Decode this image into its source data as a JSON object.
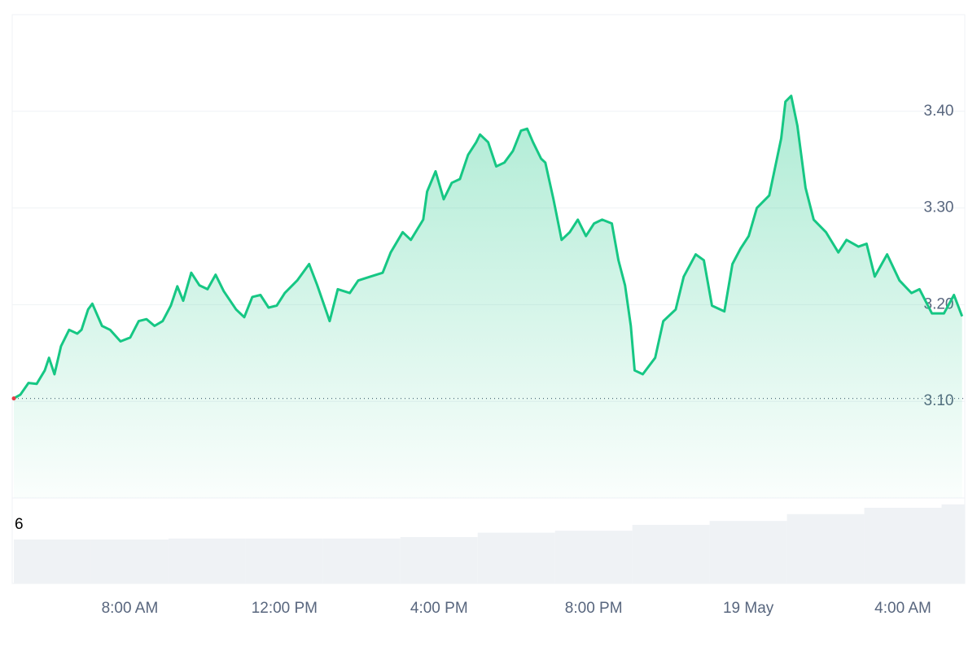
{
  "chart_data": {
    "type": "line",
    "x": [
      5.0,
      5.17,
      5.38,
      5.59,
      5.8,
      5.91,
      6.05,
      6.22,
      6.43,
      6.64,
      6.75,
      6.92,
      7.03,
      7.28,
      7.49,
      7.76,
      8.01,
      8.23,
      8.43,
      8.64,
      8.85,
      9.06,
      9.23,
      9.38,
      9.59,
      9.8,
      10.01,
      10.22,
      10.43,
      10.75,
      10.96,
      11.17,
      11.38,
      11.59,
      11.8,
      12.01,
      12.33,
      12.64,
      12.85,
      13.17,
      13.38,
      13.69,
      13.91,
      14.22,
      14.54,
      14.75,
      15.06,
      15.27,
      15.59,
      15.69,
      15.91,
      16.12,
      16.33,
      16.54,
      16.75,
      16.96,
      17.06,
      17.27,
      17.48,
      17.69,
      17.91,
      18.12,
      18.28,
      18.43,
      18.64,
      18.75,
      18.96,
      19.17,
      19.38,
      19.59,
      19.8,
      20.01,
      20.22,
      20.47,
      20.64,
      20.81,
      20.96,
      21.06,
      21.27,
      21.59,
      21.8,
      22.12,
      22.33,
      22.64,
      22.85,
      23.06,
      23.38,
      23.59,
      23.8,
      24.01,
      24.22,
      24.54,
      24.85,
      24.96,
      25.11,
      25.27,
      25.48,
      25.69,
      26.01,
      26.33,
      26.54,
      26.85,
      27.06,
      27.27,
      27.59,
      27.91,
      28.22,
      28.43,
      28.75,
      29.06,
      29.32,
      29.53
    ],
    "series": [
      {
        "color": "#16c784",
        "values": [
          3.103,
          3.107,
          3.119,
          3.118,
          3.132,
          3.145,
          3.128,
          3.157,
          3.174,
          3.17,
          3.174,
          3.195,
          3.201,
          3.178,
          3.174,
          3.162,
          3.166,
          3.183,
          3.185,
          3.178,
          3.183,
          3.199,
          3.219,
          3.204,
          3.233,
          3.22,
          3.216,
          3.231,
          3.214,
          3.195,
          3.187,
          3.208,
          3.21,
          3.197,
          3.199,
          3.212,
          3.225,
          3.242,
          3.22,
          3.183,
          3.216,
          3.212,
          3.225,
          3.229,
          3.233,
          3.254,
          3.275,
          3.267,
          3.288,
          3.317,
          3.338,
          3.309,
          3.326,
          3.33,
          3.355,
          3.368,
          3.376,
          3.368,
          3.343,
          3.347,
          3.359,
          3.38,
          3.382,
          3.368,
          3.351,
          3.347,
          3.309,
          3.267,
          3.275,
          3.288,
          3.271,
          3.284,
          3.288,
          3.284,
          3.246,
          3.22,
          3.178,
          3.132,
          3.128,
          3.145,
          3.183,
          3.195,
          3.229,
          3.252,
          3.246,
          3.199,
          3.193,
          3.242,
          3.258,
          3.271,
          3.3,
          3.313,
          3.372,
          3.41,
          3.416,
          3.385,
          3.321,
          3.288,
          3.275,
          3.254,
          3.267,
          3.26,
          3.263,
          3.229,
          3.252,
          3.225,
          3.212,
          3.216,
          3.191,
          3.191,
          3.21,
          3.188
        ]
      }
    ],
    "xlim": [
      5,
      29.6
    ],
    "ylim": [
      3.0,
      3.5
    ],
    "xticks": [
      {
        "value": 8,
        "label": "8:00 AM"
      },
      {
        "value": 12,
        "label": "12:00 PM"
      },
      {
        "value": 16,
        "label": "4:00 PM"
      },
      {
        "value": 20,
        "label": "8:00 PM"
      },
      {
        "value": 24,
        "label": "19 May"
      },
      {
        "value": 28,
        "label": "4:00 AM"
      }
    ],
    "yticks": [
      {
        "value": 3.1,
        "label": "3.10"
      },
      {
        "value": 3.2,
        "label": "3.20"
      },
      {
        "value": 3.3,
        "label": "3.30"
      },
      {
        "value": 3.4,
        "label": "3.40"
      }
    ],
    "grid": true,
    "volume": {
      "x": [
        5,
        7,
        9,
        11,
        13,
        15,
        17,
        19,
        21,
        23,
        25,
        27,
        29
      ],
      "values": [
        4.5,
        4.5,
        4.6,
        4.6,
        4.6,
        4.75,
        5.2,
        5.4,
        6.0,
        6.4,
        7.1,
        7.75,
        8.1
      ],
      "color": "#eff2f5",
      "ylim": [
        0,
        8.75
      ],
      "yticks": [
        6
      ]
    }
  }
}
